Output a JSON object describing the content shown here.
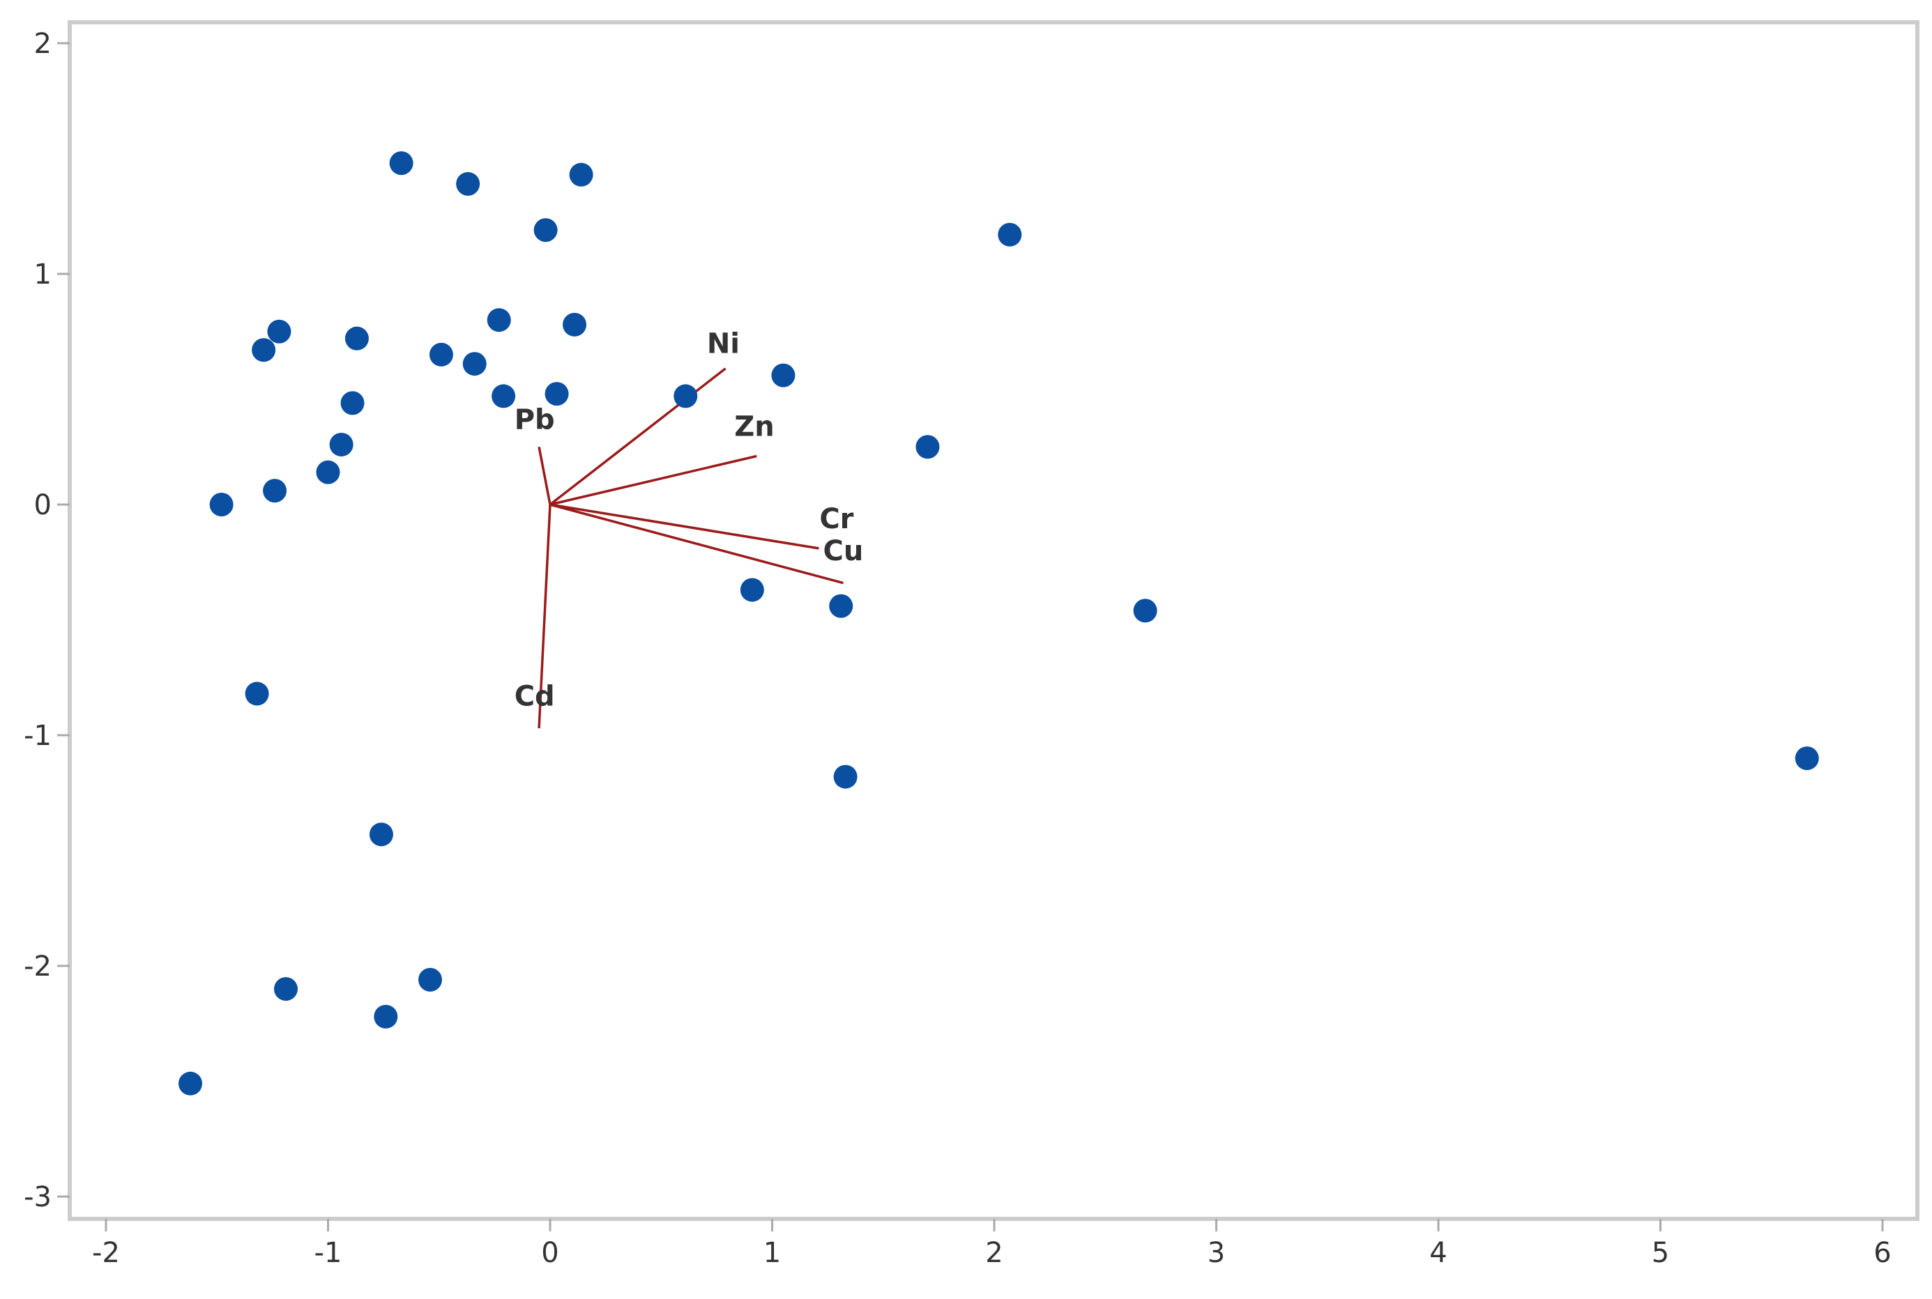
{
  "chart_data": {
    "type": "scatter",
    "title": "",
    "xlabel": "",
    "ylabel": "",
    "xlim": [
      -2.15,
      6.15
    ],
    "ylim": [
      -3.1,
      2.05
    ],
    "x_ticks": [
      -2,
      -1,
      0,
      1,
      2,
      3,
      4,
      5,
      6
    ],
    "y_ticks": [
      -3,
      -2,
      -1,
      0,
      1,
      2
    ],
    "x_tick_labels": [
      "-2",
      "-1",
      "0",
      "1",
      "2",
      "3",
      "4",
      "5",
      "6"
    ],
    "y_tick_labels": [
      "-3",
      "-2",
      "-1",
      "0",
      "1",
      "2"
    ],
    "grid": false,
    "legend": "none",
    "points": [
      {
        "x": -0.67,
        "y": 1.48
      },
      {
        "x": -0.37,
        "y": 1.39
      },
      {
        "x": 0.14,
        "y": 1.43
      },
      {
        "x": -0.02,
        "y": 1.19
      },
      {
        "x": 2.07,
        "y": 1.17
      },
      {
        "x": -1.22,
        "y": 0.75
      },
      {
        "x": -1.29,
        "y": 0.67
      },
      {
        "x": -0.87,
        "y": 0.72
      },
      {
        "x": -0.23,
        "y": 0.8
      },
      {
        "x": 0.11,
        "y": 0.78
      },
      {
        "x": -0.49,
        "y": 0.65
      },
      {
        "x": -0.34,
        "y": 0.61
      },
      {
        "x": -0.21,
        "y": 0.47
      },
      {
        "x": 0.03,
        "y": 0.48
      },
      {
        "x": 0.61,
        "y": 0.47
      },
      {
        "x": 1.05,
        "y": 0.56
      },
      {
        "x": -0.89,
        "y": 0.44
      },
      {
        "x": -0.94,
        "y": 0.26
      },
      {
        "x": 1.7,
        "y": 0.25
      },
      {
        "x": -1.0,
        "y": 0.14
      },
      {
        "x": -1.24,
        "y": 0.06
      },
      {
        "x": -1.48,
        "y": 0.0
      },
      {
        "x": 0.91,
        "y": -0.37
      },
      {
        "x": 1.31,
        "y": -0.44
      },
      {
        "x": 2.68,
        "y": -0.46
      },
      {
        "x": -1.32,
        "y": -0.82
      },
      {
        "x": 1.33,
        "y": -1.18
      },
      {
        "x": 5.66,
        "y": -1.1
      },
      {
        "x": -0.76,
        "y": -1.43
      },
      {
        "x": -0.54,
        "y": -2.06
      },
      {
        "x": -1.19,
        "y": -2.1
      },
      {
        "x": -0.74,
        "y": -2.22
      },
      {
        "x": -1.62,
        "y": -2.51
      }
    ],
    "loadings": [
      {
        "name": "Ni",
        "x": 0.79,
        "y": 0.59
      },
      {
        "name": "Zn",
        "x": 0.93,
        "y": 0.21
      },
      {
        "name": "Pb",
        "x": -0.05,
        "y": 0.25
      },
      {
        "name": "Cr",
        "x": 1.21,
        "y": -0.19
      },
      {
        "name": "Cu",
        "x": 1.32,
        "y": -0.34
      },
      {
        "name": "Cd",
        "x": -0.05,
        "y": -0.97
      }
    ],
    "loading_label_pos": {
      "Ni": [
        0.78,
        0.7
      ],
      "Zn": [
        0.92,
        0.34
      ],
      "Pb": [
        -0.07,
        0.37
      ],
      "Cr": [
        1.29,
        -0.06
      ],
      "Cu": [
        1.32,
        -0.2
      ],
      "Cd": [
        -0.07,
        -0.83
      ]
    },
    "colors": {
      "points": "#0b4fa0",
      "vectors": "#9b1b1b",
      "frame": "#cccccc",
      "axis": "#aaaaaa",
      "text": "#333333"
    }
  }
}
